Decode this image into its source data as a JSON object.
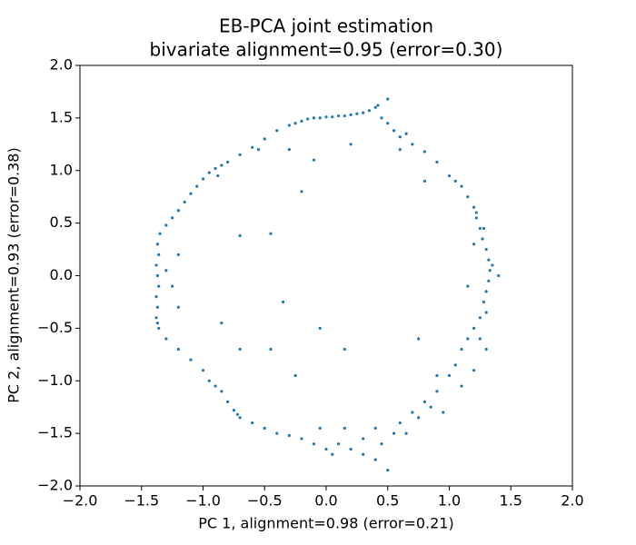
{
  "chart_data": {
    "type": "scatter",
    "title": "EB-PCA joint estimation",
    "subtitle": "bivariate alignment=0.95 (error=0.30)",
    "xlabel": "PC 1, alignment=0.98 (error=0.21)",
    "ylabel": "PC 2, alignment=0.93 (error=0.38)",
    "color": "#1f77b4",
    "xlim": [
      -2,
      2
    ],
    "ylim": [
      -2,
      2
    ],
    "xticks": [
      {
        "value": -2,
        "label": "−2.0"
      },
      {
        "value": -1.5,
        "label": "−1.5"
      },
      {
        "value": -1,
        "label": "−1.0"
      },
      {
        "value": -0.5,
        "label": "−0.5"
      },
      {
        "value": 0,
        "label": "0.0"
      },
      {
        "value": 0.5,
        "label": "0.5"
      },
      {
        "value": 1,
        "label": "1.0"
      },
      {
        "value": 1.5,
        "label": "1.5"
      },
      {
        "value": 2,
        "label": "2.0"
      }
    ],
    "yticks": [
      {
        "value": -2,
        "label": "−2.0"
      },
      {
        "value": -1.5,
        "label": "−1.5"
      },
      {
        "value": -1,
        "label": "−1.0"
      },
      {
        "value": -0.5,
        "label": "−0.5"
      },
      {
        "value": 0,
        "label": "0.0"
      },
      {
        "value": 0.5,
        "label": "0.5"
      },
      {
        "value": 1,
        "label": "1.0"
      },
      {
        "value": 1.5,
        "label": "1.5"
      },
      {
        "value": 2,
        "label": "2.0"
      }
    ],
    "x": [
      -0.3,
      -0.25,
      -0.2,
      -0.15,
      -0.1,
      -0.05,
      0,
      0.05,
      0.1,
      0.15,
      0.2,
      0.25,
      0.3,
      0.35,
      0.4,
      0.42,
      0.5,
      0.45,
      0.5,
      0.55,
      0.6,
      0.7,
      0.8,
      0.9,
      1.0,
      1.05,
      1.1,
      0.65,
      -0.4,
      -0.5,
      -0.6,
      -0.7,
      -0.8,
      -0.85,
      -0.9,
      -0.95,
      -1.0,
      -1.05,
      -1.1,
      -1.15,
      -1.2,
      -1.25,
      -1.3,
      -0.88,
      -0.55,
      -0.3,
      -0.1,
      0.2,
      -1.35,
      -1.37,
      -1.36,
      -1.38,
      -1.37,
      -1.36,
      -1.38,
      -1.37,
      -1.38,
      -1.37,
      -1.36,
      -1.2,
      -1.25,
      -1.3,
      -1.2,
      -1.3,
      -1.2,
      -1.1,
      -1.0,
      -0.95,
      -0.9,
      -0.85,
      -0.8,
      -0.75,
      -0.72,
      -0.7,
      -0.6,
      -0.5,
      -0.4,
      -0.3,
      -0.2,
      -0.1,
      0,
      0.05,
      0.1,
      0.2,
      0.3,
      0.4,
      0.5,
      0.45,
      0.55,
      0.6,
      0.7,
      0.8,
      0.9,
      1.0,
      1.05,
      1.1,
      1.15,
      1.2,
      1.25,
      0.65,
      0.75,
      0.85,
      0.95,
      1.1,
      0.9,
      0.4,
      0.3,
      0.15,
      -0.05,
      1.15,
      1.2,
      1.22,
      1.25,
      1.27,
      1.3,
      1.32,
      1.33,
      1.32,
      1.3,
      1.28,
      1.3,
      1.22,
      1.28,
      1.35,
      1.4,
      1.2,
      1.15,
      1.25,
      1.3,
      1.2,
      -0.2,
      -0.45,
      -0.7,
      -0.35,
      -0.85,
      -0.45,
      -0.25,
      -0.05,
      0.15,
      -0.7,
      0.75,
      0.6,
      0.8
    ],
    "y": [
      1.43,
      1.45,
      1.47,
      1.49,
      1.5,
      1.5,
      1.51,
      1.51,
      1.52,
      1.52,
      1.53,
      1.54,
      1.55,
      1.57,
      1.6,
      1.62,
      1.68,
      1.5,
      1.45,
      1.38,
      1.32,
      1.25,
      1.18,
      1.08,
      0.95,
      0.9,
      0.85,
      1.35,
      1.38,
      1.3,
      1.22,
      1.15,
      1.08,
      1.05,
      1.02,
      0.98,
      0.92,
      0.85,
      0.78,
      0.7,
      0.62,
      0.55,
      0.48,
      0.95,
      1.2,
      1.2,
      1.1,
      1.25,
      0.4,
      0.3,
      0.2,
      0.1,
      0.0,
      -0.1,
      -0.2,
      -0.3,
      -0.4,
      -0.45,
      -0.5,
      0.2,
      -0.1,
      0.05,
      -0.3,
      -0.6,
      -0.7,
      -0.8,
      -0.9,
      -1.0,
      -1.05,
      -1.1,
      -1.2,
      -1.28,
      -1.32,
      -1.35,
      -1.4,
      -1.45,
      -1.5,
      -1.52,
      -1.55,
      -1.6,
      -1.65,
      -1.7,
      -1.6,
      -1.65,
      -1.7,
      -1.75,
      -1.85,
      -1.6,
      -1.5,
      -1.4,
      -1.3,
      -1.2,
      -1.1,
      -0.95,
      -0.85,
      -0.7,
      -0.6,
      -0.5,
      -0.4,
      -1.5,
      -1.35,
      -1.25,
      -1.3,
      -1.05,
      -0.95,
      -1.45,
      -1.55,
      -1.45,
      -1.45,
      0.75,
      0.65,
      0.55,
      0.45,
      0.35,
      0.25,
      0.15,
      0.05,
      -0.05,
      -0.15,
      -0.25,
      -0.35,
      0.6,
      0.45,
      0.1,
      0.0,
      0.3,
      -0.1,
      -0.6,
      -0.7,
      -0.9,
      0.8,
      0.4,
      0.38,
      -0.25,
      -0.45,
      -0.7,
      -0.95,
      -0.5,
      -0.7,
      -0.7,
      -0.6,
      1.2,
      0.9
    ]
  }
}
